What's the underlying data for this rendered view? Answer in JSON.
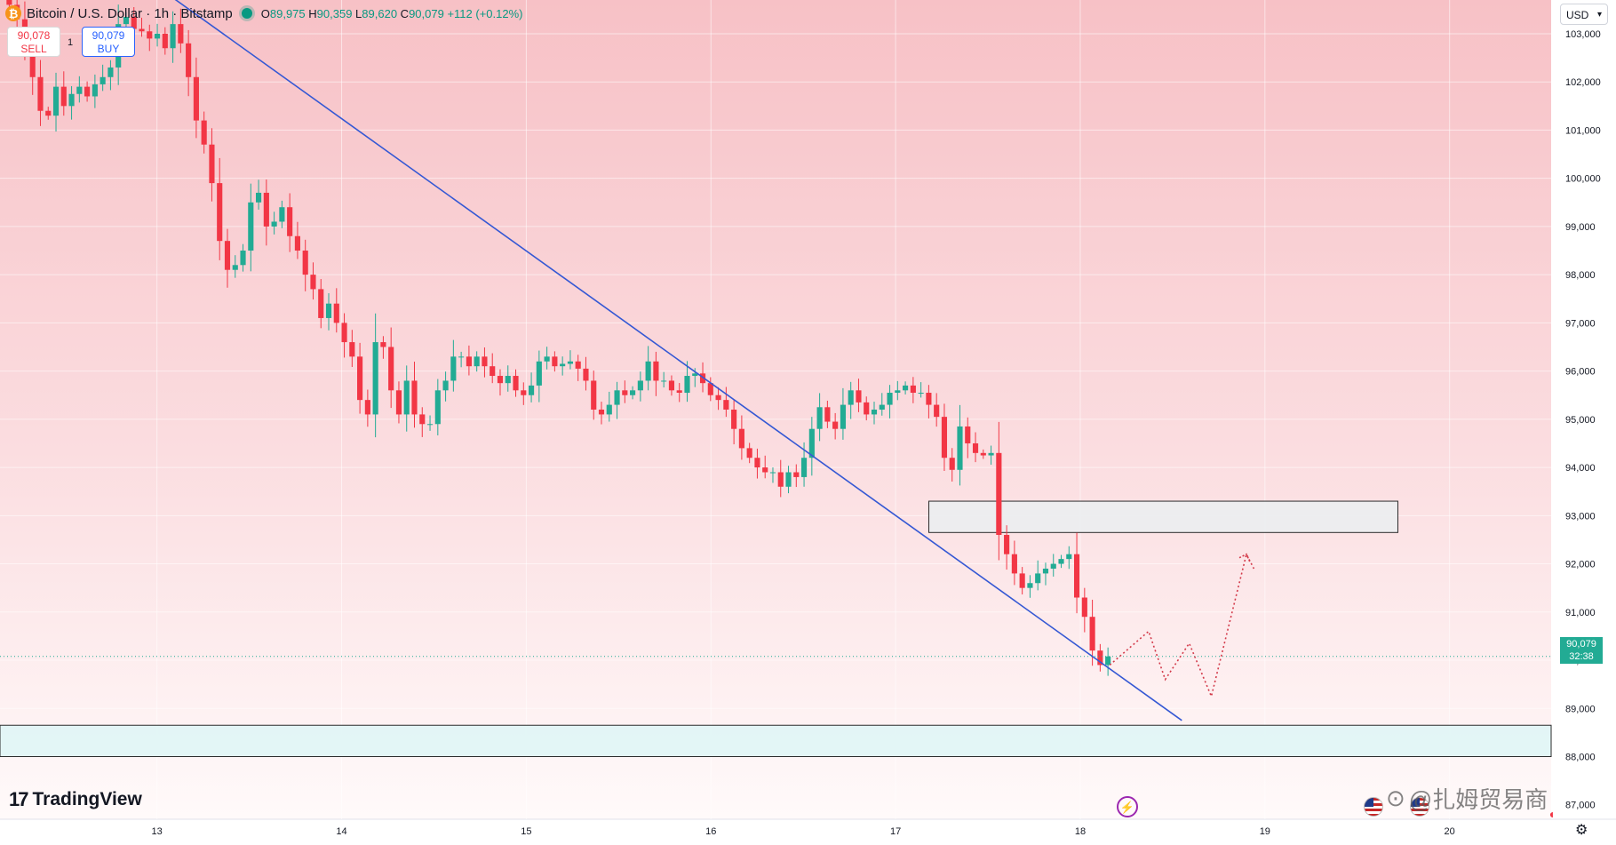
{
  "header": {
    "symbol_title": "Bitcoin / U.S. Dollar · 1h · Bitstamp",
    "coin_glyph": "₿",
    "o_label": "O",
    "o_value": "89,975",
    "h_label": "H",
    "h_value": "90,359",
    "l_label": "L",
    "l_value": "89,620",
    "c_label": "C",
    "c_value": "90,079",
    "change": "+112 (+0.12%)"
  },
  "trade": {
    "sell_price": "90,078",
    "sell_label": "SELL",
    "spread": "1",
    "buy_price": "90,079",
    "buy_label": "BUY"
  },
  "currency_select": "USD",
  "last_price": {
    "price": "90,079",
    "countdown": "32:38"
  },
  "brand": "TradingView",
  "watermark": "@扎姆贸易商",
  "colors": {
    "up": "#22ab94",
    "down": "#f23645",
    "trendline": "#3558d4",
    "projection": "#d33a4a"
  },
  "chart_data": {
    "type": "candlestick",
    "interval": "1h",
    "ylim": [
      86700,
      103700
    ],
    "y_ticks": [
      88000,
      89000,
      90000,
      91000,
      92000,
      93000,
      94000,
      95000,
      96000,
      97000,
      98000,
      99000,
      100000,
      101000,
      102000,
      103000
    ],
    "y_tick_labels": [
      "88,000",
      "89,000",
      "90,000",
      "91,000",
      "92,000",
      "93,000",
      "94,000",
      "95,000",
      "96,000",
      "97,000",
      "98,000",
      "99,000",
      "100,000",
      "101,000",
      "102,000",
      "103,000"
    ],
    "y_cutoff_label": "87,000",
    "x_ticks": [
      13,
      14,
      15,
      16,
      17,
      18,
      19,
      20
    ],
    "x_tick_labels": [
      "13",
      "14",
      "15",
      "16",
      "17",
      "18",
      "19",
      "20"
    ],
    "xlim": [
      12.15,
      20.55
    ],
    "candle_closes": [
      103600,
      103300,
      102700,
      102100,
      101400,
      101300,
      101900,
      101500,
      101750,
      101900,
      101700,
      101950,
      102100,
      102300,
      103200,
      103350,
      103100,
      103050,
      102900,
      103000,
      102700,
      103200,
      102800,
      102100,
      101200,
      100700,
      99900,
      98700,
      98100,
      98200,
      98500,
      99500,
      99700,
      99000,
      99100,
      99400,
      98800,
      98500,
      98000,
      97700,
      97100,
      97400,
      97000,
      96600,
      96300,
      95400,
      95100,
      96600,
      96500,
      95600,
      95100,
      95800,
      95100,
      94900,
      94900,
      95600,
      95800,
      96300,
      96300,
      96100,
      96300,
      96100,
      95900,
      95750,
      95900,
      95600,
      95500,
      95700,
      96200,
      96300,
      96100,
      96150,
      96200,
      96050,
      95800,
      95200,
      95100,
      95300,
      95600,
      95500,
      95600,
      95800,
      96200,
      95800,
      95800,
      95600,
      95550,
      95900,
      95950,
      95750,
      95500,
      95400,
      95200,
      94800,
      94400,
      94200,
      94000,
      93900,
      93900,
      93600,
      93900,
      93800,
      94200,
      94800,
      95250,
      94950,
      94800,
      95300,
      95600,
      95350,
      95100,
      95200,
      95300,
      95550,
      95600,
      95700,
      95550,
      95550,
      95300,
      95050,
      94200,
      93950,
      94850,
      94500,
      94300,
      94250,
      94300,
      92600,
      92200,
      91800,
      91500,
      91600,
      91800,
      91900,
      92000,
      92100,
      92200,
      91300,
      90900,
      90200,
      89900,
      90079
    ],
    "trendline": {
      "start": {
        "x": 13.03,
        "y": 103900
      },
      "end": {
        "x": 18.55,
        "y": 88750
      }
    },
    "zones": [
      {
        "name": "resistance-zone",
        "x_start": 17.18,
        "x_end": 19.72,
        "y_low": 92650,
        "y_high": 93300
      },
      {
        "name": "support-zone",
        "x_start": 12.15,
        "x_end": 20.55,
        "y_low": 88000,
        "y_high": 88650
      }
    ],
    "projection": [
      {
        "x": 18.16,
        "y": 89900
      },
      {
        "x": 18.37,
        "y": 90600
      },
      {
        "x": 18.46,
        "y": 89600
      },
      {
        "x": 18.59,
        "y": 90350
      },
      {
        "x": 18.71,
        "y": 89250
      },
      {
        "x": 18.9,
        "y": 92200
      },
      {
        "x": 18.94,
        "y": 91900
      }
    ]
  }
}
